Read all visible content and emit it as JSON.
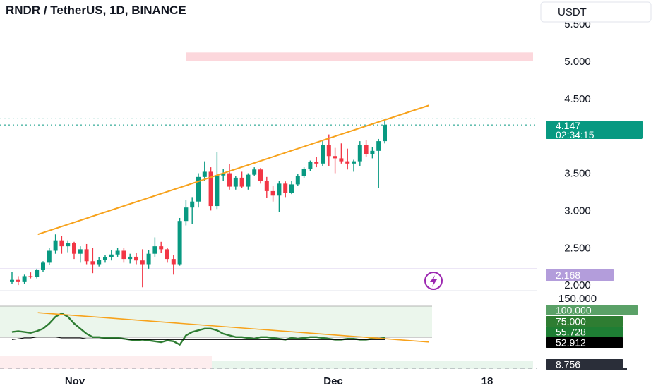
{
  "header": {
    "title": "RNDR / TetherUS, 1D, BINANCE",
    "currency_label": "USDT"
  },
  "colors": {
    "up": "#089981",
    "down": "#f23645",
    "trendline": "#f7a21b",
    "indicator": "#2e7d32",
    "zone": "#fcd7dc",
    "level_line": "#b39ddb",
    "alert": "#9c27b0"
  },
  "chart_data": [
    {
      "type": "candlestick",
      "title": "RNDR / TetherUS, 1D, BINANCE",
      "price_axis": {
        "ticks": [
          "5.500",
          "5.000",
          "4.500",
          "3.500",
          "3.000",
          "2.500",
          "2.000"
        ],
        "range": [
          2.0,
          5.5
        ]
      },
      "time_axis": {
        "labels": [
          "Nov",
          "Dec",
          "18"
        ]
      },
      "candles": [
        {
          "o": 2.04,
          "h": 2.18,
          "l": 2.02,
          "c": 2.07
        },
        {
          "o": 2.07,
          "h": 2.12,
          "l": 2.0,
          "c": 2.04
        },
        {
          "o": 2.04,
          "h": 2.14,
          "l": 2.02,
          "c": 2.12
        },
        {
          "o": 2.12,
          "h": 2.17,
          "l": 2.09,
          "c": 2.11
        },
        {
          "o": 2.11,
          "h": 2.22,
          "l": 2.09,
          "c": 2.2
        },
        {
          "o": 2.2,
          "h": 2.32,
          "l": 2.18,
          "c": 2.3
        },
        {
          "o": 2.3,
          "h": 2.5,
          "l": 2.27,
          "c": 2.46
        },
        {
          "o": 2.46,
          "h": 2.68,
          "l": 2.42,
          "c": 2.6
        },
        {
          "o": 2.6,
          "h": 2.66,
          "l": 2.42,
          "c": 2.52
        },
        {
          "o": 2.52,
          "h": 2.6,
          "l": 2.44,
          "c": 2.56
        },
        {
          "o": 2.56,
          "h": 2.58,
          "l": 2.35,
          "c": 2.42
        },
        {
          "o": 2.42,
          "h": 2.52,
          "l": 2.3,
          "c": 2.48
        },
        {
          "o": 2.48,
          "h": 2.55,
          "l": 2.28,
          "c": 2.32
        },
        {
          "o": 2.32,
          "h": 2.5,
          "l": 2.16,
          "c": 2.28
        },
        {
          "o": 2.28,
          "h": 2.37,
          "l": 2.25,
          "c": 2.34
        },
        {
          "o": 2.34,
          "h": 2.4,
          "l": 2.3,
          "c": 2.37
        },
        {
          "o": 2.37,
          "h": 2.47,
          "l": 2.33,
          "c": 2.41
        },
        {
          "o": 2.41,
          "h": 2.5,
          "l": 2.38,
          "c": 2.46
        },
        {
          "o": 2.46,
          "h": 2.5,
          "l": 2.3,
          "c": 2.35
        },
        {
          "o": 2.35,
          "h": 2.42,
          "l": 2.29,
          "c": 2.38
        },
        {
          "o": 2.38,
          "h": 2.43,
          "l": 2.28,
          "c": 2.33
        },
        {
          "o": 2.33,
          "h": 2.48,
          "l": 1.97,
          "c": 2.28
        },
        {
          "o": 2.28,
          "h": 2.47,
          "l": 2.22,
          "c": 2.42
        },
        {
          "o": 2.42,
          "h": 2.64,
          "l": 2.38,
          "c": 2.52
        },
        {
          "o": 2.52,
          "h": 2.58,
          "l": 2.43,
          "c": 2.48
        },
        {
          "o": 2.48,
          "h": 2.5,
          "l": 2.3,
          "c": 2.35
        },
        {
          "o": 2.35,
          "h": 2.4,
          "l": 2.14,
          "c": 2.28
        },
        {
          "o": 2.28,
          "h": 2.9,
          "l": 2.26,
          "c": 2.86
        },
        {
          "o": 2.86,
          "h": 3.14,
          "l": 2.8,
          "c": 3.04
        },
        {
          "o": 3.04,
          "h": 3.18,
          "l": 2.82,
          "c": 3.12
        },
        {
          "o": 3.12,
          "h": 3.5,
          "l": 3.04,
          "c": 3.45
        },
        {
          "o": 3.45,
          "h": 3.66,
          "l": 3.4,
          "c": 3.52
        },
        {
          "o": 3.52,
          "h": 3.58,
          "l": 3.0,
          "c": 3.06
        },
        {
          "o": 3.06,
          "h": 3.78,
          "l": 3.02,
          "c": 3.47
        },
        {
          "o": 3.47,
          "h": 3.56,
          "l": 3.4,
          "c": 3.5
        },
        {
          "o": 3.5,
          "h": 3.62,
          "l": 3.28,
          "c": 3.32
        },
        {
          "o": 3.32,
          "h": 3.46,
          "l": 3.28,
          "c": 3.44
        },
        {
          "o": 3.44,
          "h": 3.52,
          "l": 3.3,
          "c": 3.32
        },
        {
          "o": 3.32,
          "h": 3.5,
          "l": 3.28,
          "c": 3.48
        },
        {
          "o": 3.48,
          "h": 3.58,
          "l": 3.46,
          "c": 3.55
        },
        {
          "o": 3.55,
          "h": 3.57,
          "l": 3.36,
          "c": 3.4
        },
        {
          "o": 3.4,
          "h": 3.45,
          "l": 3.17,
          "c": 3.26
        },
        {
          "o": 3.26,
          "h": 3.33,
          "l": 3.12,
          "c": 3.2
        },
        {
          "o": 3.2,
          "h": 3.4,
          "l": 2.98,
          "c": 3.36
        },
        {
          "o": 3.36,
          "h": 3.39,
          "l": 3.18,
          "c": 3.24
        },
        {
          "o": 3.24,
          "h": 3.4,
          "l": 3.22,
          "c": 3.35
        },
        {
          "o": 3.35,
          "h": 3.49,
          "l": 3.33,
          "c": 3.46
        },
        {
          "o": 3.46,
          "h": 3.58,
          "l": 3.44,
          "c": 3.56
        },
        {
          "o": 3.56,
          "h": 3.67,
          "l": 3.53,
          "c": 3.65
        },
        {
          "o": 3.65,
          "h": 3.72,
          "l": 3.58,
          "c": 3.63
        },
        {
          "o": 3.63,
          "h": 3.93,
          "l": 3.6,
          "c": 3.88
        },
        {
          "o": 3.88,
          "h": 4.02,
          "l": 3.6,
          "c": 3.73
        },
        {
          "o": 3.73,
          "h": 3.84,
          "l": 3.5,
          "c": 3.7
        },
        {
          "o": 3.7,
          "h": 3.9,
          "l": 3.63,
          "c": 3.66
        },
        {
          "o": 3.66,
          "h": 3.83,
          "l": 3.55,
          "c": 3.63
        },
        {
          "o": 3.63,
          "h": 3.68,
          "l": 3.52,
          "c": 3.66
        },
        {
          "o": 3.66,
          "h": 3.93,
          "l": 3.6,
          "c": 3.88
        },
        {
          "o": 3.88,
          "h": 3.95,
          "l": 3.72,
          "c": 3.76
        },
        {
          "o": 3.76,
          "h": 3.85,
          "l": 3.7,
          "c": 3.8
        },
        {
          "o": 3.8,
          "h": 3.96,
          "l": 3.3,
          "c": 3.93
        },
        {
          "o": 3.93,
          "h": 4.23,
          "l": 3.9,
          "c": 4.147
        }
      ],
      "trendline": {
        "start": {
          "index": 7,
          "price": 2.68
        },
        "end": {
          "index": 73,
          "price": 4.41
        }
      },
      "zone": {
        "from": 5.0,
        "to": 5.12,
        "start_index": 32
      },
      "dotted_levels": [
        4.23,
        4.147
      ],
      "horizontal_level": 2.168,
      "price_labels": [
        {
          "text": "4.147",
          "price": 4.147,
          "color": "#089981"
        },
        {
          "text": "02:34:15",
          "price": 4.147,
          "color": "#089981",
          "note": "countdown"
        },
        {
          "text": "2.168",
          "price": 2.168,
          "color": "#b39ddb"
        }
      ]
    },
    {
      "type": "line",
      "indicator_axis": {
        "ticks": [
          "150.000",
          "75.000"
        ],
        "range": [
          0,
          150
        ]
      },
      "band": [
        55.728,
        75.0
      ],
      "series": [
        {
          "values": [
            62,
            63,
            62,
            61,
            63,
            66,
            72,
            80,
            84,
            80,
            72,
            66,
            60,
            56,
            56,
            55,
            55,
            55,
            54,
            53,
            52,
            53,
            52,
            51,
            50,
            52,
            51,
            47,
            58,
            62,
            64,
            66,
            66,
            64,
            60,
            58,
            56,
            56,
            55,
            54,
            56,
            56,
            55,
            54,
            53,
            55,
            54,
            55,
            56,
            56,
            55,
            54,
            53,
            53,
            54,
            54,
            53,
            53,
            54,
            54,
            55
          ]
        },
        {
          "values": [
            53,
            54,
            55,
            55,
            56,
            56,
            56,
            56,
            55,
            55,
            55,
            55,
            54,
            54,
            54,
            54,
            54,
            54,
            54,
            53,
            53,
            53,
            53,
            53,
            53,
            53,
            53,
            53,
            53,
            53,
            53,
            53,
            53,
            53,
            53,
            53,
            53,
            53,
            53,
            53,
            53,
            53,
            53,
            53,
            53,
            53,
            53,
            53,
            53,
            53,
            53,
            53,
            53,
            53,
            53,
            53,
            53,
            53,
            53,
            53,
            53
          ]
        }
      ],
      "trendline": {
        "start": {
          "index": 7,
          "value": 84
        },
        "end": {
          "index": 73,
          "value": 56
        }
      },
      "value_labels": [
        {
          "text": "100.000",
          "color": "#5aa167"
        },
        {
          "text": "75.000",
          "color": "#2e7d32"
        },
        {
          "text": "55.728",
          "color": "#1e7e34"
        },
        {
          "text": "52.912",
          "color": "#000000"
        },
        {
          "text": "8.756",
          "color": "#2a2e39"
        }
      ]
    }
  ]
}
